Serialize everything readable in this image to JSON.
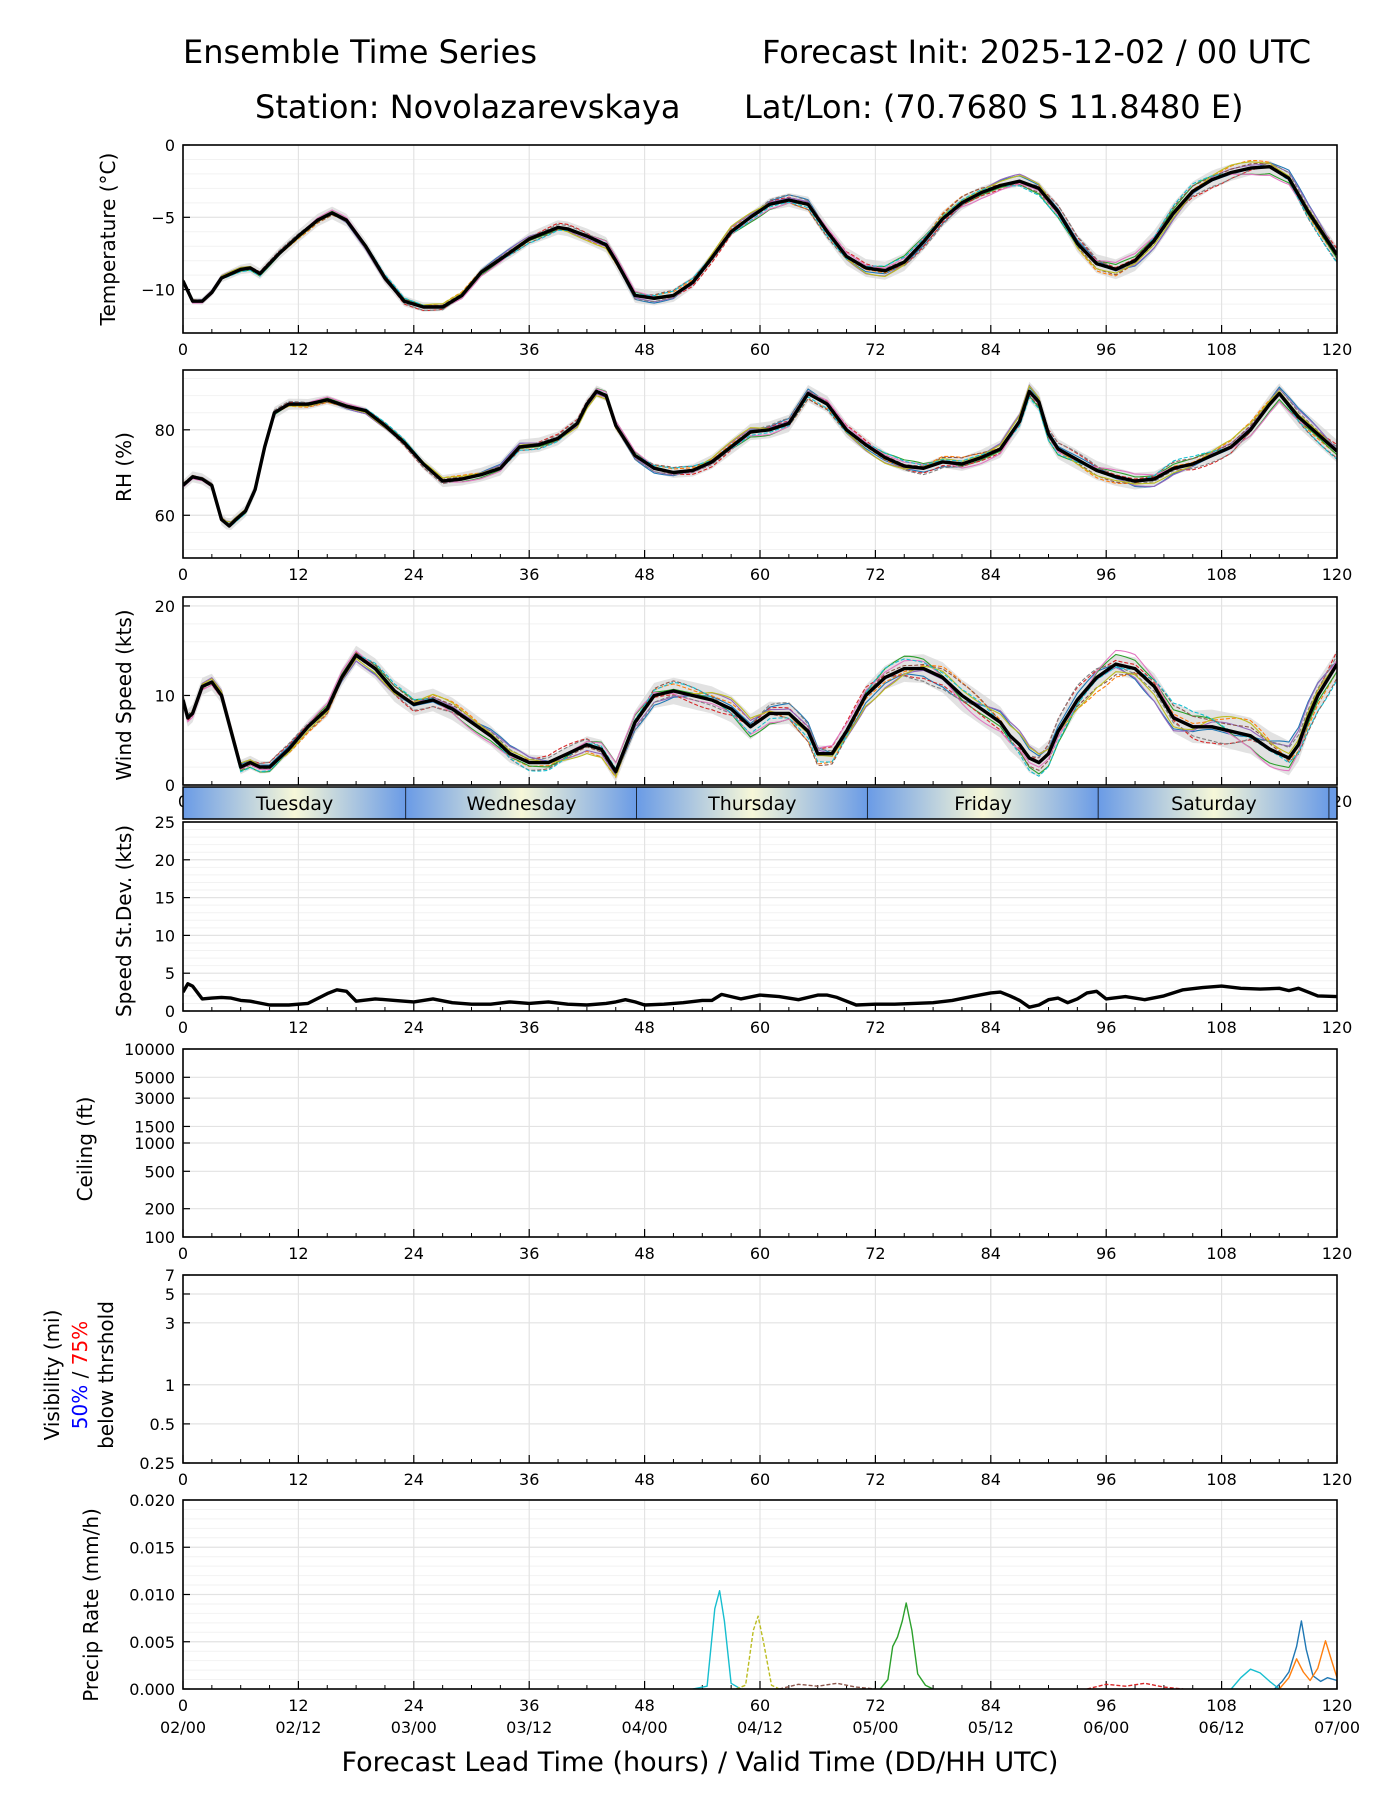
{
  "header": {
    "title_left": "Ensemble Time Series",
    "title_right": "Forecast Init: 2025-12-02 / 00 UTC",
    "station": "Station: Novolazarevskaya",
    "latlon": "Lat/Lon: (70.7680 S 11.8480 E)"
  },
  "colors": {
    "mean_line": "#000000",
    "spread_fill": "#d6d6d6",
    "grid": "#e3e3e3",
    "members": [
      "#1f77b4",
      "#ff7f0e",
      "#2ca02c",
      "#d62728",
      "#9467bd",
      "#8c564b",
      "#e377c2",
      "#7f7f7f",
      "#bcbd22",
      "#17becf"
    ],
    "day_band_blue": "#6a9be6",
    "day_band_light": "#f6f7d8",
    "vis_50": "#0000ff",
    "vis_75": "#ff0000"
  },
  "x_axis": {
    "label": "Forecast Lead Time (hours) / Valid Time (DD/HH UTC)",
    "ticks": [
      0,
      12,
      24,
      36,
      48,
      60,
      72,
      84,
      96,
      108,
      120
    ],
    "valid_time_labels": [
      "02/00",
      "02/12",
      "03/00",
      "03/12",
      "04/00",
      "04/12",
      "05/00",
      "05/12",
      "06/00",
      "06/12",
      "07/00"
    ],
    "range": [
      0,
      120
    ]
  },
  "day_band": {
    "days": [
      {
        "name": "Tuesday",
        "start": 0,
        "end": 23.2
      },
      {
        "name": "Wednesday",
        "start": 23.2,
        "end": 47.2
      },
      {
        "name": "Thursday",
        "start": 47.2,
        "end": 71.2
      },
      {
        "name": "Friday",
        "start": 71.2,
        "end": 95.2
      },
      {
        "name": "Saturday",
        "start": 95.2,
        "end": 119.2
      }
    ]
  },
  "chart_data": [
    {
      "id": "temperature",
      "type": "line",
      "ylabel": "Temperature (°C)",
      "ylim": [
        -13,
        0
      ],
      "yticks": [
        0,
        -5,
        -10
      ],
      "ytick_labels": [
        "0",
        "−5",
        "−10"
      ],
      "series": [
        {
          "name": "ensemble mean",
          "x": [
            0,
            1,
            2,
            3,
            4,
            5,
            6,
            7,
            8,
            10,
            12,
            14,
            15.5,
            17,
            19,
            21,
            23,
            25,
            27,
            29,
            31,
            33,
            36,
            39,
            40,
            42,
            44,
            45,
            47,
            49,
            51,
            53,
            55,
            57,
            59,
            61,
            63,
            65,
            67,
            69,
            71,
            73,
            75,
            77,
            79,
            81,
            83,
            85,
            87,
            89,
            91,
            93,
            95,
            97,
            99,
            101,
            103,
            105,
            107,
            109,
            111,
            113,
            115,
            117,
            120
          ],
          "values": [
            -9.4,
            -10.8,
            -10.8,
            -10.2,
            -9.2,
            -8.9,
            -8.6,
            -8.5,
            -8.9,
            -7.5,
            -6.3,
            -5.2,
            -4.7,
            -5.2,
            -7.0,
            -9.2,
            -10.8,
            -11.2,
            -11.2,
            -10.4,
            -8.8,
            -7.9,
            -6.5,
            -5.7,
            -5.8,
            -6.3,
            -6.9,
            -8.0,
            -10.4,
            -10.6,
            -10.4,
            -9.5,
            -7.8,
            -6.0,
            -5.0,
            -4.1,
            -3.8,
            -4.1,
            -6.0,
            -7.7,
            -8.5,
            -8.7,
            -8.1,
            -6.7,
            -5.1,
            -4.0,
            -3.3,
            -2.8,
            -2.5,
            -3.0,
            -4.6,
            -6.8,
            -8.2,
            -8.6,
            -8.0,
            -6.6,
            -4.7,
            -3.2,
            -2.4,
            -1.9,
            -1.6,
            -1.5,
            -2.3,
            -4.6,
            -7.6
          ]
        }
      ],
      "members": 10
    },
    {
      "id": "rh",
      "type": "line",
      "ylabel": "RH (%)",
      "ylim": [
        50,
        94
      ],
      "yticks": [
        60,
        80
      ],
      "ytick_labels": [
        "60",
        "80"
      ],
      "series": [
        {
          "name": "ensemble mean",
          "x": [
            0,
            1,
            2,
            3,
            4,
            4.8,
            5.5,
            6.5,
            7.5,
            8.5,
            9.5,
            11,
            13,
            15,
            17,
            19,
            21,
            23,
            25,
            27,
            29,
            31,
            33,
            35,
            37,
            39,
            41,
            42,
            43,
            44,
            45,
            47,
            49,
            51,
            53,
            55,
            57,
            59,
            61,
            63,
            65,
            67,
            69,
            71,
            73,
            75,
            77,
            79,
            81,
            83,
            85,
            87,
            88,
            89,
            90,
            91,
            93,
            95,
            97,
            99,
            101,
            103,
            105,
            107,
            109,
            111,
            113,
            114,
            116,
            118,
            120
          ],
          "values": [
            67,
            69,
            68.5,
            67,
            59,
            57.5,
            59,
            61,
            66,
            76,
            84,
            86,
            86,
            87,
            85.5,
            84.5,
            81,
            77,
            72,
            68,
            68.5,
            69.5,
            71,
            76,
            76.5,
            78,
            81.5,
            86,
            89,
            88,
            81,
            74,
            71,
            70,
            70.5,
            72.5,
            76,
            79.5,
            80,
            81.5,
            88.5,
            86,
            80,
            76.5,
            73.5,
            71.5,
            71,
            72.5,
            72,
            73.5,
            75.5,
            82,
            89,
            86.5,
            79,
            75.5,
            73,
            70.5,
            69,
            68,
            68.5,
            71,
            72,
            74,
            76,
            80,
            86,
            88.5,
            83,
            79,
            75
          ]
        }
      ],
      "members": 10
    },
    {
      "id": "wind_speed",
      "type": "line",
      "ylabel": "Wind Speed (kts)",
      "ylim": [
        0,
        21
      ],
      "yticks": [
        0,
        10,
        20
      ],
      "ytick_labels": [
        "0",
        "10",
        "20"
      ],
      "series": [
        {
          "name": "ensemble mean",
          "x": [
            0,
            0.5,
            1,
            2,
            3,
            4,
            5,
            6,
            7,
            8,
            9,
            11,
            13,
            15,
            16.5,
            18,
            20,
            22,
            24,
            26,
            28,
            30,
            32,
            34,
            36,
            38,
            40,
            42,
            43.5,
            45,
            47,
            49,
            51,
            53,
            55,
            57,
            59,
            61,
            63,
            65,
            66,
            67.5,
            69,
            71,
            73,
            75,
            77,
            79,
            81,
            83,
            85,
            86,
            87,
            88,
            89,
            90,
            91,
            93,
            95,
            97,
            99,
            101,
            103,
            105,
            107,
            109,
            111,
            113,
            114,
            115,
            116,
            117,
            118,
            120
          ],
          "values": [
            9.5,
            7.5,
            8,
            11,
            11.5,
            10,
            6,
            2,
            2.5,
            2,
            2,
            4,
            6.5,
            8.5,
            12,
            14.5,
            13,
            10.5,
            9,
            9.5,
            8.5,
            7,
            5.5,
            3.5,
            2.5,
            2.5,
            3.5,
            4.5,
            4,
            1.5,
            7,
            10,
            10.5,
            10,
            9.5,
            8.5,
            6.5,
            8,
            8,
            6,
            3.5,
            3.5,
            6,
            10,
            12,
            13,
            13,
            12,
            10,
            8.5,
            7,
            5.5,
            4.5,
            3,
            2.5,
            3.5,
            6,
            9.5,
            12,
            13.5,
            13,
            11,
            7.5,
            6.5,
            6.5,
            6,
            5.5,
            4,
            3.5,
            3,
            4.5,
            7.5,
            10,
            13.5
          ]
        }
      ],
      "members": 10
    },
    {
      "id": "speed_stdev",
      "type": "line",
      "ylabel": "Speed St.Dev. (kts)",
      "ylim": [
        0,
        25
      ],
      "yticks": [
        0,
        5,
        10,
        15,
        20,
        25
      ],
      "ytick_labels": [
        "0",
        "5",
        "10",
        "15",
        "20",
        "25"
      ],
      "series": [
        {
          "name": "standard deviation",
          "x": [
            0,
            0.5,
            1,
            2,
            3,
            4,
            5,
            6,
            7,
            9,
            11,
            13,
            15,
            16,
            17,
            18,
            20,
            22,
            24,
            25,
            26,
            28,
            30,
            32,
            34,
            36,
            38,
            40,
            42,
            44,
            45,
            46,
            47,
            48,
            50,
            52,
            54,
            55,
            56,
            58,
            60,
            62,
            64,
            66,
            67,
            68,
            69,
            70,
            72,
            74,
            76,
            78,
            80,
            82,
            84,
            85,
            86,
            87,
            88,
            89,
            90,
            91,
            92,
            93,
            94,
            95,
            96,
            98,
            100,
            102,
            104,
            106,
            108,
            110,
            112,
            114,
            115,
            116,
            117,
            118,
            120
          ],
          "values": [
            2.5,
            3.6,
            3.3,
            1.6,
            1.7,
            1.8,
            1.7,
            1.4,
            1.3,
            0.8,
            0.8,
            1.0,
            2.3,
            2.8,
            2.6,
            1.3,
            1.6,
            1.4,
            1.2,
            1.4,
            1.6,
            1.1,
            0.9,
            0.9,
            1.2,
            1.0,
            1.2,
            0.9,
            0.8,
            1.0,
            1.2,
            1.5,
            1.2,
            0.8,
            0.9,
            1.1,
            1.4,
            1.4,
            2.2,
            1.6,
            2.1,
            1.9,
            1.5,
            2.1,
            2.1,
            1.8,
            1.3,
            0.8,
            0.9,
            0.9,
            1.0,
            1.1,
            1.4,
            1.9,
            2.4,
            2.5,
            2.0,
            1.4,
            0.5,
            0.8,
            1.5,
            1.7,
            1.1,
            1.6,
            2.4,
            2.6,
            1.6,
            1.9,
            1.5,
            2.0,
            2.8,
            3.1,
            3.3,
            3.0,
            2.9,
            3.0,
            2.7,
            3.0,
            2.5,
            2.0,
            1.9
          ]
        }
      ]
    },
    {
      "id": "ceiling",
      "type": "line",
      "ylabel": "Ceiling (ft)",
      "yscale": "log",
      "ylim": [
        100,
        10000
      ],
      "yticks": [
        100,
        200,
        500,
        1000,
        1500,
        3000,
        5000,
        10000
      ],
      "ytick_labels": [
        "100",
        "200",
        "500",
        "1000",
        "1500",
        "3000",
        "5000",
        "10000"
      ],
      "series": []
    },
    {
      "id": "visibility",
      "type": "line",
      "ylabel": "Visibility (mi)",
      "ylabel_pct_50": "50%",
      "ylabel_sep": "/",
      "ylabel_pct_75": "75%",
      "ylabel_sub": "below thrshold",
      "yscale": "log",
      "ylim": [
        0.25,
        7
      ],
      "yticks": [
        0.25,
        0.5,
        1,
        3,
        5,
        7
      ],
      "ytick_labels": [
        "0.25",
        "0.5",
        "1",
        "3",
        "5",
        "7"
      ],
      "series": []
    },
    {
      "id": "precip",
      "type": "line",
      "ylabel": "Precip Rate (mm/h)",
      "ylim": [
        0,
        0.02
      ],
      "yticks": [
        0,
        0.005,
        0.01,
        0.015,
        0.02
      ],
      "ytick_labels": [
        "0.000",
        "0.005",
        "0.010",
        "0.015",
        "0.020"
      ],
      "series": [
        {
          "name": "member cyan",
          "color": "#17becf",
          "x": [
            53,
            54.5,
            55.3,
            55.8,
            56.3,
            57,
            58
          ],
          "values": [
            0,
            0.0003,
            0.0085,
            0.0104,
            0.0072,
            0.0006,
            0
          ]
        },
        {
          "name": "member olive",
          "color": "#bcbd22",
          "dashed": true,
          "x": [
            57.5,
            58.5,
            59.3,
            59.8,
            60.4,
            61.2,
            62
          ],
          "values": [
            0,
            0.0004,
            0.0062,
            0.0077,
            0.0048,
            0.0004,
            0
          ]
        },
        {
          "name": "member green",
          "color": "#2ca02c",
          "x": [
            72.5,
            73.3,
            73.8,
            74.3,
            74.8,
            75.2,
            75.8,
            76.4,
            77.2,
            78
          ],
          "values": [
            0,
            0.001,
            0.0045,
            0.0055,
            0.0072,
            0.0091,
            0.0062,
            0.0016,
            0.0004,
            0
          ]
        },
        {
          "name": "member blue",
          "color": "#1f77b4",
          "x": [
            113.5,
            114.3,
            115,
            115.8,
            116.3,
            116.8,
            117.5,
            118.3,
            119,
            120
          ],
          "values": [
            0,
            0.0008,
            0.0018,
            0.0045,
            0.0072,
            0.0042,
            0.0014,
            0.0008,
            0.0012,
            0.0009
          ]
        },
        {
          "name": "member orange",
          "color": "#ff7f0e",
          "x": [
            114,
            115,
            115.8,
            116.5,
            117.2,
            118,
            118.8,
            119.5,
            120
          ],
          "values": [
            0,
            0.0012,
            0.0032,
            0.0018,
            0.0009,
            0.0022,
            0.0051,
            0.0028,
            0.0012
          ]
        },
        {
          "name": "member teal",
          "color": "#17becf",
          "x": [
            109,
            110,
            111,
            112,
            113,
            114
          ],
          "values": [
            0,
            0.0012,
            0.0021,
            0.0017,
            0.0008,
            0
          ]
        },
        {
          "name": "member brown",
          "color": "#8c564b",
          "dashed": true,
          "x": [
            62,
            64,
            66,
            68,
            70,
            72
          ],
          "values": [
            0,
            0.0005,
            0.0003,
            0.0006,
            0.0002,
            0
          ]
        },
        {
          "name": "member red",
          "color": "#d62728",
          "dashed": true,
          "x": [
            94,
            96,
            98,
            100,
            102,
            104
          ],
          "values": [
            0,
            0.0005,
            0.0003,
            0.0006,
            0.0002,
            0
          ]
        }
      ]
    }
  ]
}
